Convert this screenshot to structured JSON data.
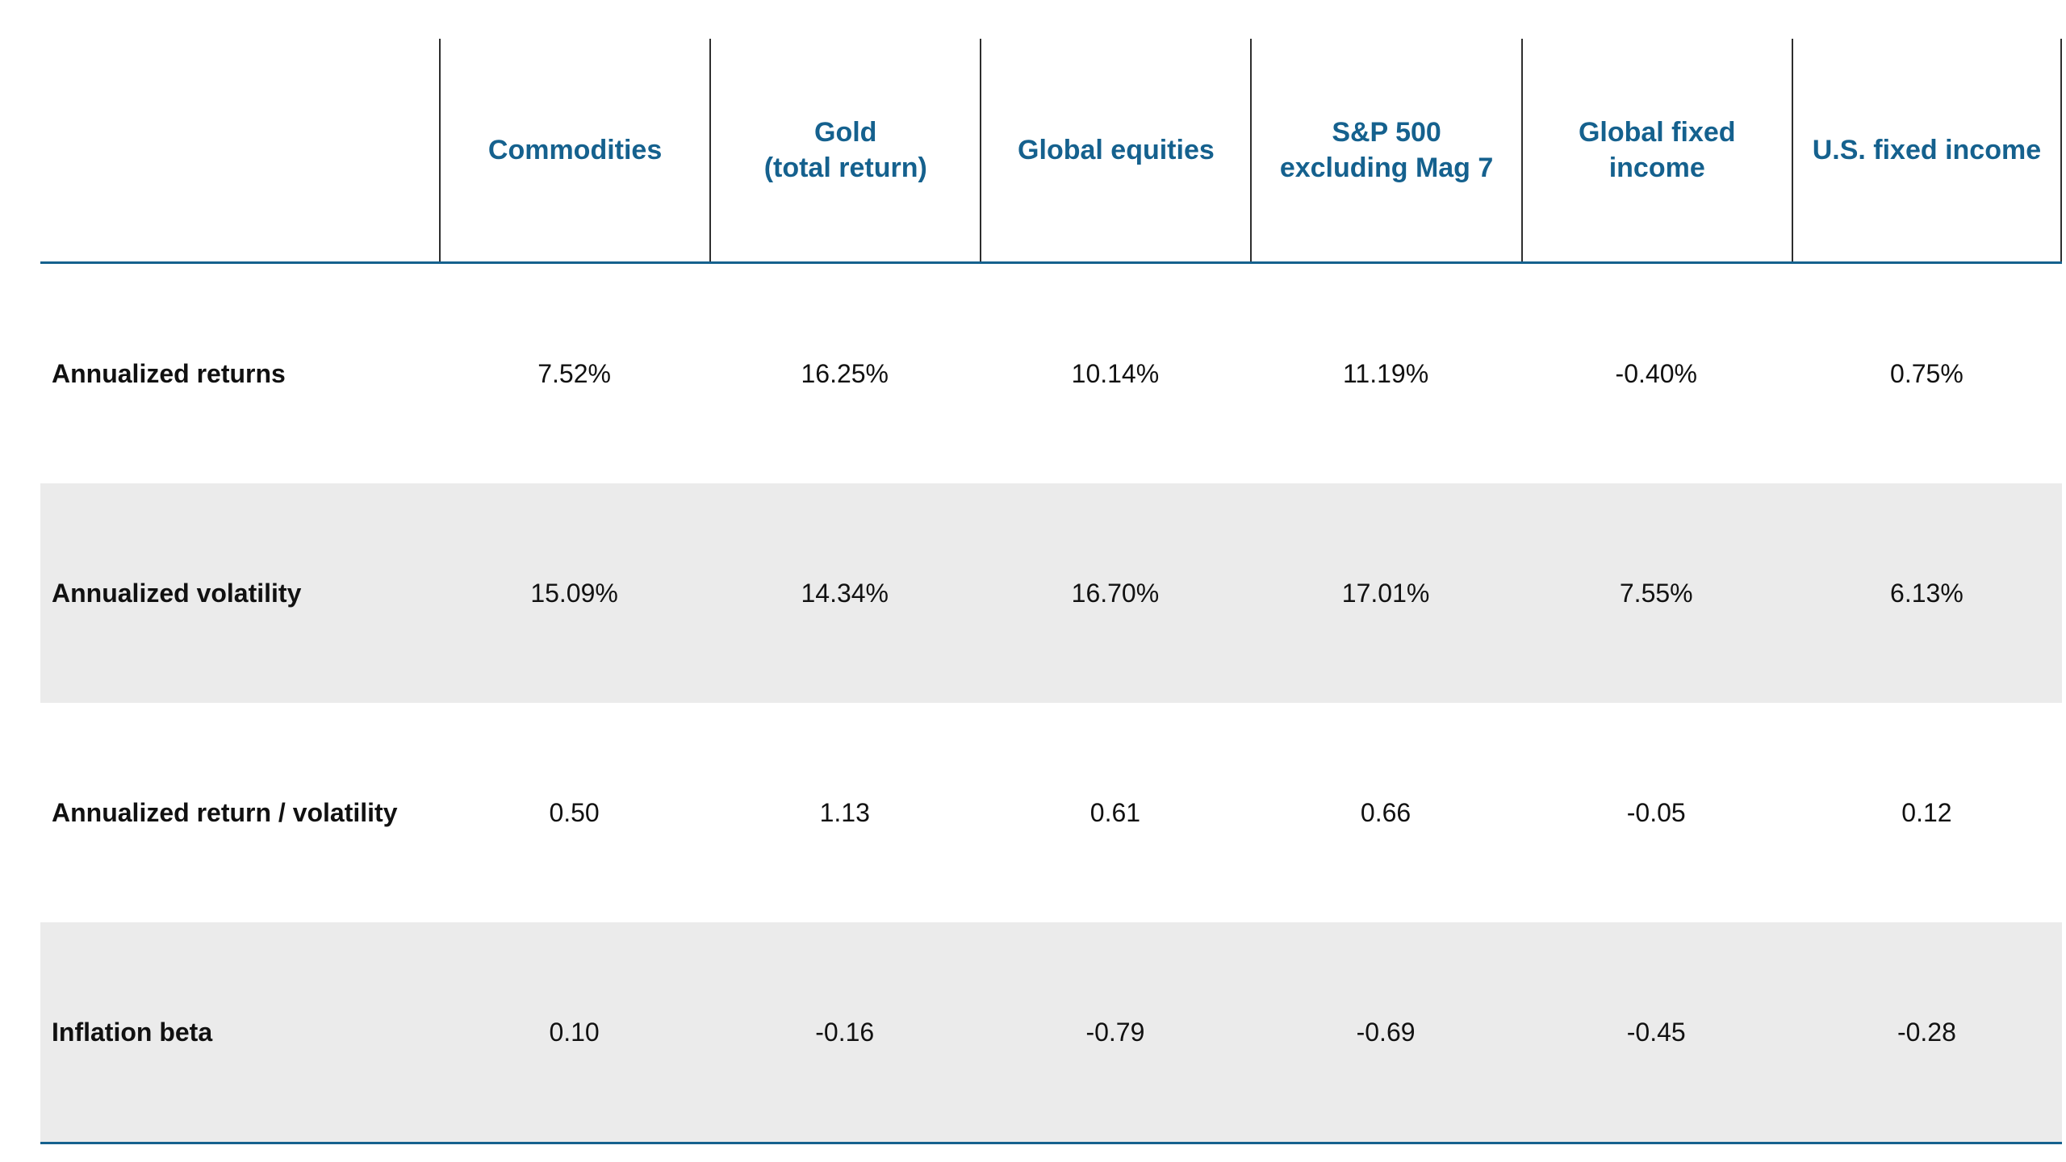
{
  "table": {
    "columns": [
      "Commodities",
      "Gold\n(total return)",
      "Global equities",
      "S&P 500\nexcluding Mag 7",
      "Global fixed\nincome",
      "U.S. fixed income"
    ],
    "rows": [
      {
        "label": "Annualized returns",
        "values": [
          "7.52%",
          "16.25%",
          "10.14%",
          "11.19%",
          "-0.40%",
          "0.75%"
        ]
      },
      {
        "label": "Annualized volatility",
        "values": [
          "15.09%",
          "14.34%",
          "16.70%",
          "17.01%",
          "7.55%",
          "6.13%"
        ]
      },
      {
        "label": "Annualized return / volatility",
        "values": [
          "0.50",
          "1.13",
          "0.61",
          "0.66",
          "-0.05",
          "0.12"
        ]
      },
      {
        "label": "Inflation beta",
        "values": [
          "0.10",
          "-0.16",
          "-0.79",
          "-0.69",
          "-0.45",
          "-0.28"
        ]
      }
    ],
    "colors": {
      "header_text": "#15618e",
      "rule_blue": "#15618e",
      "divider_dark": "#2e2e2e",
      "row_alt_bg": "#ebebeb",
      "body_text": "#111111"
    }
  },
  "chart_data": {
    "type": "table",
    "categories": [
      "Commodities",
      "Gold (total return)",
      "Global equities",
      "S&P 500 excluding Mag 7",
      "Global fixed income",
      "U.S. fixed income"
    ],
    "series": [
      {
        "name": "Annualized returns",
        "values": [
          "7.52%",
          "16.25%",
          "10.14%",
          "11.19%",
          "-0.40%",
          "0.75%"
        ]
      },
      {
        "name": "Annualized volatility",
        "values": [
          "15.09%",
          "14.34%",
          "16.70%",
          "17.01%",
          "7.55%",
          "6.13%"
        ]
      },
      {
        "name": "Annualized return / volatility",
        "values": [
          0.5,
          1.13,
          0.61,
          0.66,
          -0.05,
          0.12
        ]
      },
      {
        "name": "Inflation beta",
        "values": [
          0.1,
          -0.16,
          -0.79,
          -0.69,
          -0.45,
          -0.28
        ]
      }
    ],
    "title": "",
    "legend_position": "none",
    "grid": false
  }
}
